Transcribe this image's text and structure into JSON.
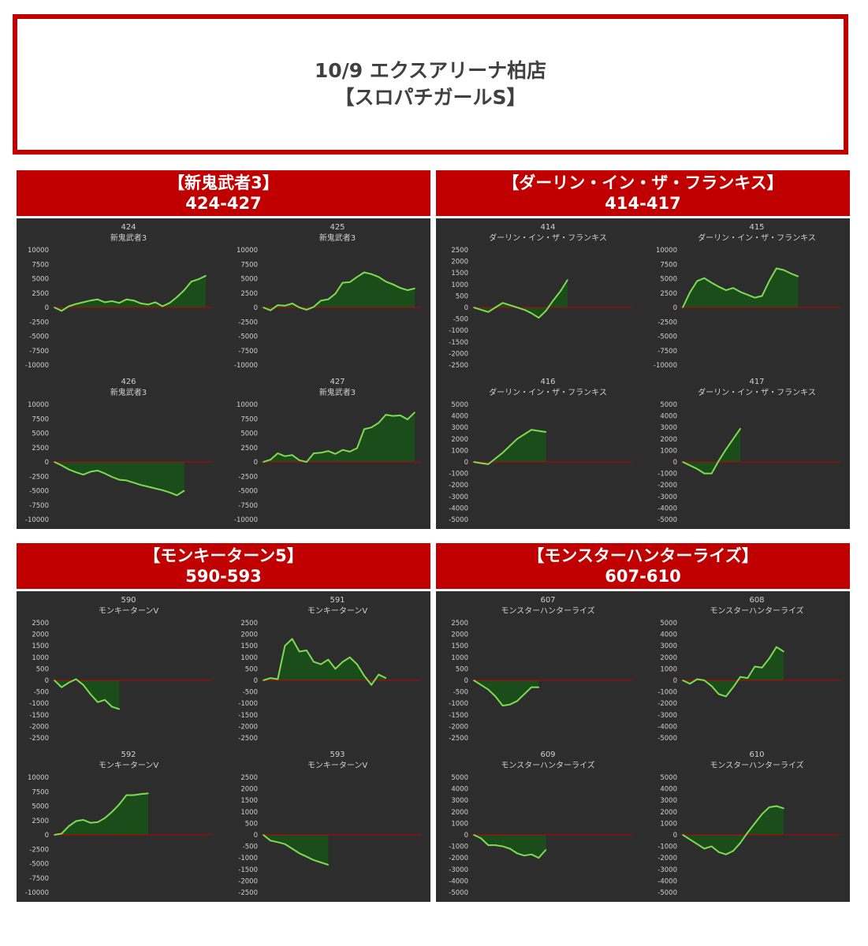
{
  "header": {
    "line1": "10/9 エクスアリーナ柏店",
    "line2": "【スロパチガールS】"
  },
  "colors": {
    "accent": "#c00000",
    "panel_bg": "#2d2d2d",
    "line": "#7ddc52",
    "fill": "#1b4d1b",
    "zero_line": "#c00000",
    "axis_text": "#d0d0d0"
  },
  "sections": [
    {
      "title": "【新鬼武者3】",
      "range": "424-427"
    },
    {
      "title": "【ダーリン・イン・ザ・フランキス】",
      "range": "414-417"
    },
    {
      "title": "【モンキーターン5】",
      "range": "590-593"
    },
    {
      "title": "【モンスターハンターライズ】",
      "range": "607-610"
    }
  ],
  "chart_data": [
    {
      "type": "area",
      "number": "424",
      "title": "新鬼武者3",
      "ylim": [
        -10000,
        10000
      ],
      "yticks": [
        "10000",
        "7500",
        "5000",
        "2500",
        "0",
        "-2500",
        "-5000",
        "-7500",
        "-10000"
      ],
      "values": [
        0,
        -600,
        200,
        600,
        900,
        1200,
        1400,
        900,
        1100,
        800,
        1400,
        1200,
        700,
        500,
        900,
        200,
        800,
        1800,
        3000,
        4500,
        4900,
        5500
      ]
    },
    {
      "type": "area",
      "number": "425",
      "title": "新鬼武者3",
      "ylim": [
        -10000,
        10000
      ],
      "yticks": [
        "10000",
        "7500",
        "5000",
        "2500",
        "0",
        "-2500",
        "-5000",
        "-7500",
        "-10000"
      ],
      "values": [
        0,
        -500,
        400,
        300,
        700,
        0,
        -400,
        100,
        1200,
        1400,
        2400,
        4300,
        4400,
        5300,
        6100,
        5800,
        5300,
        4500,
        4000,
        3400,
        3000,
        3300
      ]
    },
    {
      "type": "area",
      "number": "426",
      "title": "新鬼武者3",
      "ylim": [
        -10000,
        10000
      ],
      "yticks": [
        "10000",
        "7500",
        "5000",
        "2500",
        "0",
        "-2500",
        "-5000",
        "-7500",
        "-10000"
      ],
      "values": [
        0,
        -600,
        -1300,
        -1800,
        -2200,
        -1700,
        -1500,
        -2000,
        -2600,
        -3100,
        -3200,
        -3600,
        -4000,
        -4300,
        -4600,
        -4900,
        -5300,
        -5800,
        -5000
      ]
    },
    {
      "type": "area",
      "number": "427",
      "title": "新鬼武者3",
      "ylim": [
        -10000,
        10000
      ],
      "yticks": [
        "10000",
        "7500",
        "5000",
        "2500",
        "0",
        "-2500",
        "-5000",
        "-7500",
        "-10000"
      ],
      "values": [
        0,
        400,
        1500,
        1000,
        1200,
        300,
        0,
        1500,
        1600,
        1900,
        1400,
        2100,
        1800,
        2400,
        5700,
        6000,
        6800,
        8200,
        8000,
        8100,
        7400,
        8600
      ]
    },
    {
      "type": "area",
      "number": "414",
      "title": "ダーリン・イン・ザ・フランキス",
      "ylim": [
        -2500,
        2500
      ],
      "yticks": [
        "2500",
        "2000",
        "1500",
        "1000",
        "500",
        "0",
        "-500",
        "-1000",
        "-1500",
        "-2000",
        "-2500"
      ],
      "values": [
        0,
        -100,
        -200,
        0,
        200,
        100,
        0,
        -100,
        -250,
        -450,
        -150,
        300,
        700,
        1200
      ]
    },
    {
      "type": "area",
      "number": "415",
      "title": "ダーリン・イン・ザ・フランキス",
      "ylim": [
        -10000,
        10000
      ],
      "yticks": [
        "10000",
        "7500",
        "5000",
        "2500",
        "0",
        "-2500",
        "-5000",
        "-7500",
        "-10000"
      ],
      "values": [
        0,
        2600,
        4600,
        5100,
        4300,
        3600,
        3000,
        3400,
        2700,
        2200,
        1700,
        2000,
        4600,
        6800,
        6500,
        5900,
        5400
      ]
    },
    {
      "type": "area",
      "number": "416",
      "title": "ダーリン・イン・ザ・フランキス",
      "ylim": [
        -5000,
        5000
      ],
      "yticks": [
        "5000",
        "4000",
        "3000",
        "2000",
        "1000",
        "0",
        "-1000",
        "-2000",
        "-3000",
        "-4000",
        "-5000"
      ],
      "values": [
        0,
        -100,
        -200,
        300,
        800,
        1400,
        2000,
        2400,
        2800,
        2700,
        2600
      ]
    },
    {
      "type": "area",
      "number": "417",
      "title": "ダーリン・イン・ザ・フランキス",
      "ylim": [
        -5000,
        5000
      ],
      "yticks": [
        "5000",
        "4000",
        "3000",
        "2000",
        "1000",
        "0",
        "-1000",
        "-2000",
        "-3000",
        "-4000",
        "-5000"
      ],
      "values": [
        0,
        -300,
        -600,
        -1000,
        -1000,
        100,
        1100,
        2000,
        2900
      ]
    },
    {
      "type": "area",
      "number": "590",
      "title": "モンキーターンV",
      "ylim": [
        -2500,
        2500
      ],
      "yticks": [
        "2500",
        "2000",
        "1500",
        "1000",
        "500",
        "0",
        "-500",
        "-1000",
        "-1500",
        "-2000",
        "-2500"
      ],
      "values": [
        0,
        -300,
        -100,
        50,
        -200,
        -600,
        -950,
        -850,
        -1150,
        -1250
      ]
    },
    {
      "type": "area",
      "number": "591",
      "title": "モンキーターンV",
      "ylim": [
        -2500,
        2500
      ],
      "yticks": [
        "2500",
        "2000",
        "1500",
        "1000",
        "500",
        "0",
        "-500",
        "-1000",
        "-1500",
        "-2000",
        "-2500"
      ],
      "values": [
        0,
        100,
        50,
        1500,
        1800,
        1250,
        1300,
        800,
        700,
        900,
        500,
        800,
        1000,
        700,
        200,
        -200,
        250,
        100
      ]
    },
    {
      "type": "area",
      "number": "592",
      "title": "モンキーターンV",
      "ylim": [
        -10000,
        10000
      ],
      "yticks": [
        "10000",
        "7500",
        "5000",
        "2500",
        "0",
        "-2500",
        "-5000",
        "-7500",
        "-10000"
      ],
      "values": [
        0,
        200,
        1500,
        2400,
        2600,
        2100,
        2200,
        2900,
        4000,
        5300,
        6900,
        6900,
        7100,
        7200
      ]
    },
    {
      "type": "area",
      "number": "593",
      "title": "モンキーターンV",
      "ylim": [
        -2500,
        2500
      ],
      "yticks": [
        "2500",
        "2000",
        "1500",
        "1000",
        "500",
        "0",
        "-500",
        "-1000",
        "-1500",
        "-2000",
        "-2500"
      ],
      "values": [
        0,
        -250,
        -320,
        -400,
        -600,
        -800,
        -950,
        -1100,
        -1200,
        -1300
      ]
    },
    {
      "type": "area",
      "number": "607",
      "title": "モンスターハンターライズ",
      "ylim": [
        -2500,
        2500
      ],
      "yticks": [
        "2500",
        "2000",
        "1500",
        "1000",
        "500",
        "0",
        "-500",
        "-1000",
        "-1500",
        "-2000",
        "-2500"
      ],
      "values": [
        0,
        -200,
        -400,
        -700,
        -1100,
        -1050,
        -900,
        -600,
        -300,
        -300
      ]
    },
    {
      "type": "area",
      "number": "608",
      "title": "モンスターハンターライズ",
      "ylim": [
        -5000,
        5000
      ],
      "yticks": [
        "5000",
        "4000",
        "3000",
        "2000",
        "1000",
        "0",
        "-1000",
        "-2000",
        "-3000",
        "-4000",
        "-5000"
      ],
      "values": [
        0,
        -300,
        100,
        0,
        -500,
        -1200,
        -1400,
        -600,
        300,
        200,
        1200,
        1100,
        1900,
        2900,
        2500
      ]
    },
    {
      "type": "area",
      "number": "609",
      "title": "モンスターハンターライズ",
      "ylim": [
        -5000,
        5000
      ],
      "yticks": [
        "5000",
        "4000",
        "3000",
        "2000",
        "1000",
        "0",
        "-1000",
        "-2000",
        "-3000",
        "-4000",
        "-5000"
      ],
      "values": [
        0,
        -300,
        -900,
        -900,
        -1000,
        -1200,
        -1600,
        -1800,
        -1700,
        -2000,
        -1300
      ]
    },
    {
      "type": "area",
      "number": "610",
      "title": "モンスターハンターライズ",
      "ylim": [
        -5000,
        5000
      ],
      "yticks": [
        "5000",
        "4000",
        "3000",
        "2000",
        "1000",
        "0",
        "-1000",
        "-2000",
        "-3000",
        "-4000",
        "-5000"
      ],
      "values": [
        0,
        -400,
        -800,
        -1200,
        -1000,
        -1500,
        -1700,
        -1400,
        -700,
        200,
        1000,
        1800,
        2400,
        2500,
        2300
      ]
    }
  ]
}
